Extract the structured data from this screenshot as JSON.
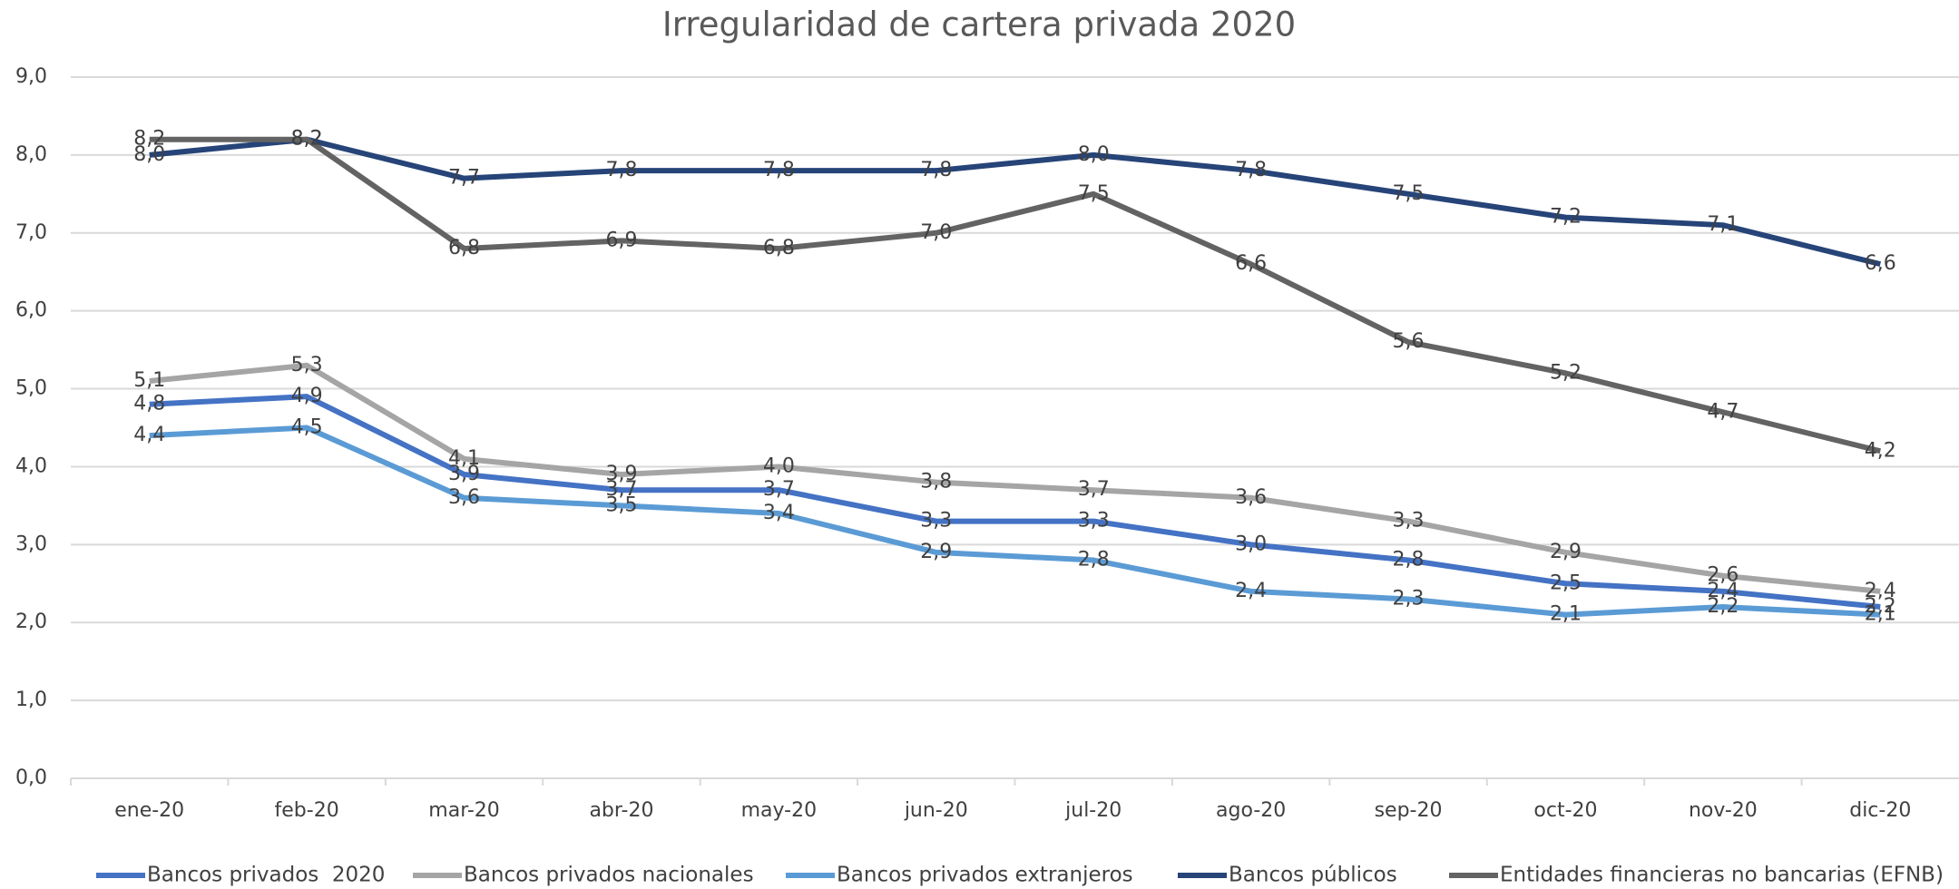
{
  "chart_data": {
    "type": "line",
    "title": "Irregularidad de cartera privada 2020",
    "categories": [
      "ene-20",
      "feb-20",
      "mar-20",
      "abr-20",
      "may-20",
      "jun-20",
      "jul-20",
      "ago-20",
      "sep-20",
      "oct-20",
      "nov-20",
      "dic-20"
    ],
    "ylim": [
      0,
      9
    ],
    "yticks": [
      {
        "value": 0,
        "label": "0,0"
      },
      {
        "value": 1,
        "label": "1,0"
      },
      {
        "value": 2,
        "label": "2,0"
      },
      {
        "value": 3,
        "label": "3,0"
      },
      {
        "value": 4,
        "label": "4,0"
      },
      {
        "value": 5,
        "label": "5,0"
      },
      {
        "value": 6,
        "label": "6,0"
      },
      {
        "value": 7,
        "label": "7,0"
      },
      {
        "value": 8,
        "label": "8,0"
      },
      {
        "value": 9,
        "label": "9,0"
      }
    ],
    "grid": true,
    "legend": "bottom",
    "series": [
      {
        "name": "Bancos privados  2020",
        "color": "#4472c4",
        "values": [
          4.8,
          4.9,
          3.9,
          3.7,
          3.7,
          3.3,
          3.3,
          3.0,
          2.8,
          2.5,
          2.4,
          2.2
        ],
        "value_labels": [
          "4,8",
          "4,9",
          "3,9",
          "3,7",
          "3,7",
          "3,3",
          "3,3",
          "3,0",
          "2,8",
          "2,5",
          "2,4",
          "2,2"
        ]
      },
      {
        "name": "Bancos privados nacionales",
        "color": "#a5a5a5",
        "values": [
          5.1,
          5.3,
          4.1,
          3.9,
          4.0,
          3.8,
          3.7,
          3.6,
          3.3,
          2.9,
          2.6,
          2.4
        ],
        "value_labels": [
          "5,1",
          "5,3",
          "4,1",
          "3,9",
          "4,0",
          "3,8",
          "3,7",
          "3,6",
          "3,3",
          "2,9",
          "2,6",
          "2,4"
        ]
      },
      {
        "name": "Bancos privados extranjeros",
        "color": "#5b9bd5",
        "values": [
          4.4,
          4.5,
          3.6,
          3.5,
          3.4,
          2.9,
          2.8,
          2.4,
          2.3,
          2.1,
          2.2,
          2.1
        ],
        "value_labels": [
          "4,4",
          "4,5",
          "3,6",
          "3,5",
          "3,4",
          "2,9",
          "2,8",
          "2,4",
          "2,3",
          "2,1",
          "2,2",
          "2,1"
        ]
      },
      {
        "name": "Bancos públicos",
        "color": "#264478",
        "values": [
          8.0,
          8.2,
          7.7,
          7.8,
          7.8,
          7.8,
          8.0,
          7.8,
          7.5,
          7.2,
          7.1,
          6.6
        ],
        "value_labels": [
          "8,0",
          "8,2",
          "7,7",
          "7,8",
          "7,8",
          "7,8",
          "8,0",
          "7,8",
          "7,5",
          "7,2",
          "7,1",
          "6,6"
        ]
      },
      {
        "name": "Entidades financieras no bancarias (EFNB)",
        "color": "#636363",
        "values": [
          8.2,
          8.2,
          6.8,
          6.9,
          6.8,
          7.0,
          7.5,
          6.6,
          5.6,
          5.2,
          4.7,
          4.2
        ],
        "value_labels": [
          "8,2",
          "8,2",
          "6,8",
          "6,9",
          "6,8",
          "7,0",
          "7,5",
          "6,6",
          "5,6",
          "5,2",
          "4,7",
          "4,2"
        ]
      }
    ]
  }
}
